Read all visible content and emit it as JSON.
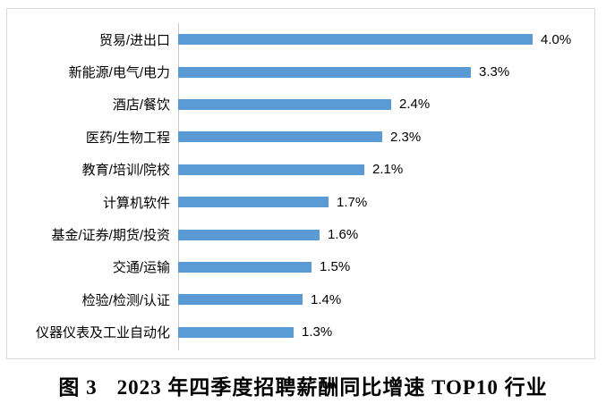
{
  "caption": {
    "figure_label": "图 3",
    "title": "2023 年四季度招聘薪酬同比增速 TOP10 行业"
  },
  "chart_data": {
    "type": "bar",
    "orientation": "horizontal",
    "title": "图 3 2023 年四季度招聘薪酬同比增速 TOP10 行业",
    "categories": [
      "贸易/进出口",
      "新能源/电气/电力",
      "酒店/餐饮",
      "医药/生物工程",
      "教育/培训/院校",
      "计算机软件",
      "基金/证券/期货/投资",
      "交通/运输",
      "检验/检测/认证",
      "仪器仪表及工业自动化"
    ],
    "values": [
      4.0,
      3.3,
      2.4,
      2.3,
      2.1,
      1.7,
      1.6,
      1.5,
      1.4,
      1.3
    ],
    "value_labels": [
      "4.0%",
      "3.3%",
      "2.4%",
      "2.3%",
      "2.1%",
      "1.7%",
      "1.6%",
      "1.5%",
      "1.4%",
      "1.3%"
    ],
    "unit": "percent",
    "xlim": [
      0,
      4.6
    ],
    "grid": false,
    "legend": "none",
    "bar_color": "#5B9BD5",
    "axis_line_color": "#c9c9c9",
    "border_color": "#d9d9d9"
  }
}
